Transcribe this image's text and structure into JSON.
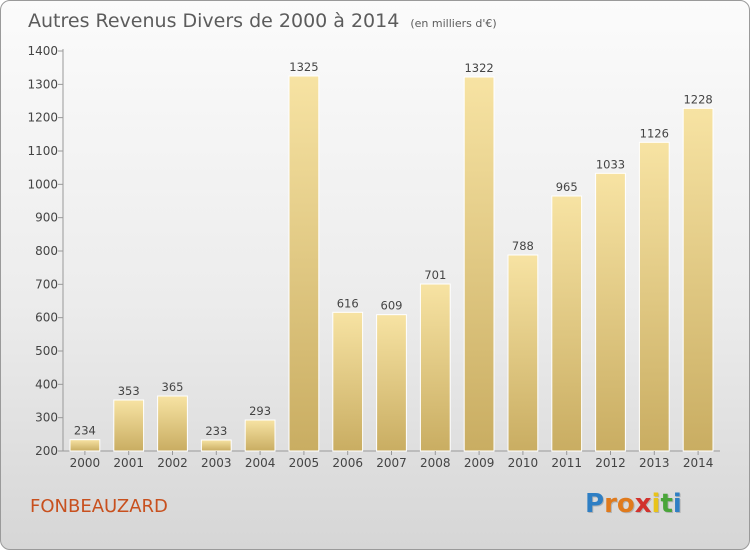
{
  "header": {
    "title": "Autres Revenus Divers de 2000 à 2014",
    "subtitle": "(en milliers d'€)"
  },
  "footer": {
    "place": "FONBEAUZARD",
    "brand_letters": [
      "P",
      "r",
      "o",
      "x",
      "i",
      "t",
      "i"
    ],
    "brand_colors": [
      "#2f7fc4",
      "#e07a1c",
      "#e07a1c",
      "#d2322d",
      "#e8c31a",
      "#4aa53a",
      "#2f7fc4"
    ]
  },
  "colors": {
    "bar_light": "#f7e3a3",
    "bar_dark": "#c9ad62",
    "text": "#444444",
    "grid": "#d8d8d8"
  },
  "chart_data": {
    "type": "bar",
    "title": "Autres Revenus Divers de 2000 à 2014",
    "subtitle": "(en milliers d'€)",
    "xlabel": "",
    "ylabel": "",
    "categories": [
      "2000",
      "2001",
      "2002",
      "2003",
      "2004",
      "2005",
      "2006",
      "2007",
      "2008",
      "2009",
      "2010",
      "2011",
      "2012",
      "2013",
      "2014"
    ],
    "values": [
      234,
      353,
      365,
      233,
      293,
      1325,
      616,
      609,
      701,
      1322,
      788,
      965,
      1033,
      1126,
      1228
    ],
    "ylim": [
      200,
      1400
    ],
    "yticks": [
      200,
      300,
      400,
      500,
      600,
      700,
      800,
      900,
      1000,
      1100,
      1200,
      1300,
      1400
    ],
    "grid": false,
    "legend": "none"
  }
}
